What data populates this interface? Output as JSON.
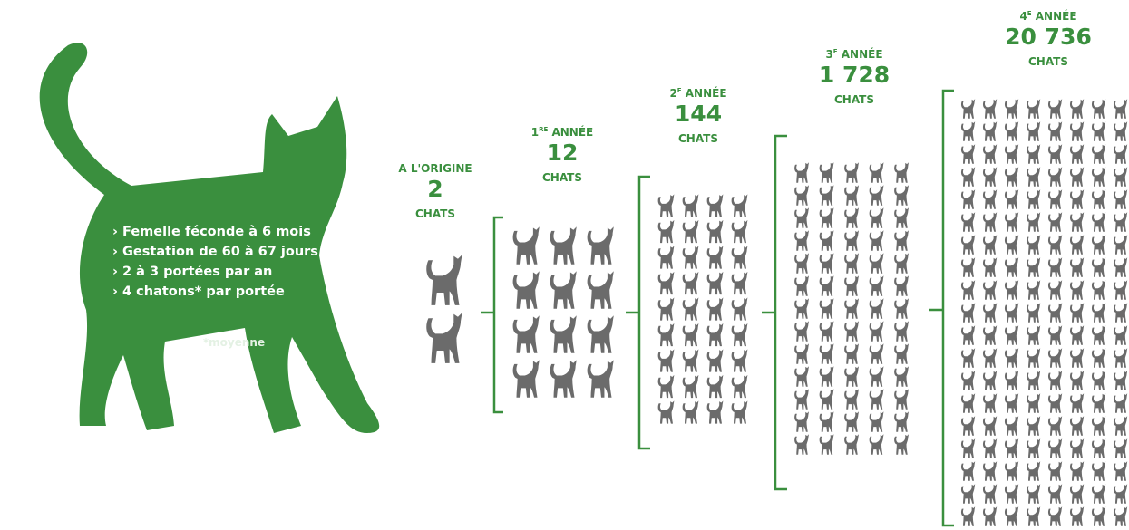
{
  "facts": [
    "› Femelle féconde à 6 mois",
    "› Gestation de 60 à 67 jours",
    "› 2 à 3 portées par an",
    "› 4 chatons* par portée"
  ],
  "note": "*moyenne",
  "stages": [
    {
      "label": {
        "text": "A L'ORIGINE"
      },
      "count": "2",
      "unit": "CHATS"
    },
    {
      "label": {
        "num": "1",
        "sup": "RE",
        "text": " ANNÉE"
      },
      "count": "12",
      "unit": "CHATS"
    },
    {
      "label": {
        "num": "2",
        "sup": "E",
        "text": " ANNÉE"
      },
      "count": "144",
      "unit": "CHATS"
    },
    {
      "label": {
        "num": "3",
        "sup": "E",
        "text": " ANNÉE"
      },
      "count": "1 728",
      "unit": "CHATS"
    },
    {
      "label": {
        "num": "4",
        "sup": "E",
        "text": " ANNÉE"
      },
      "count": "20 736",
      "unit": "CHATS"
    }
  ]
}
